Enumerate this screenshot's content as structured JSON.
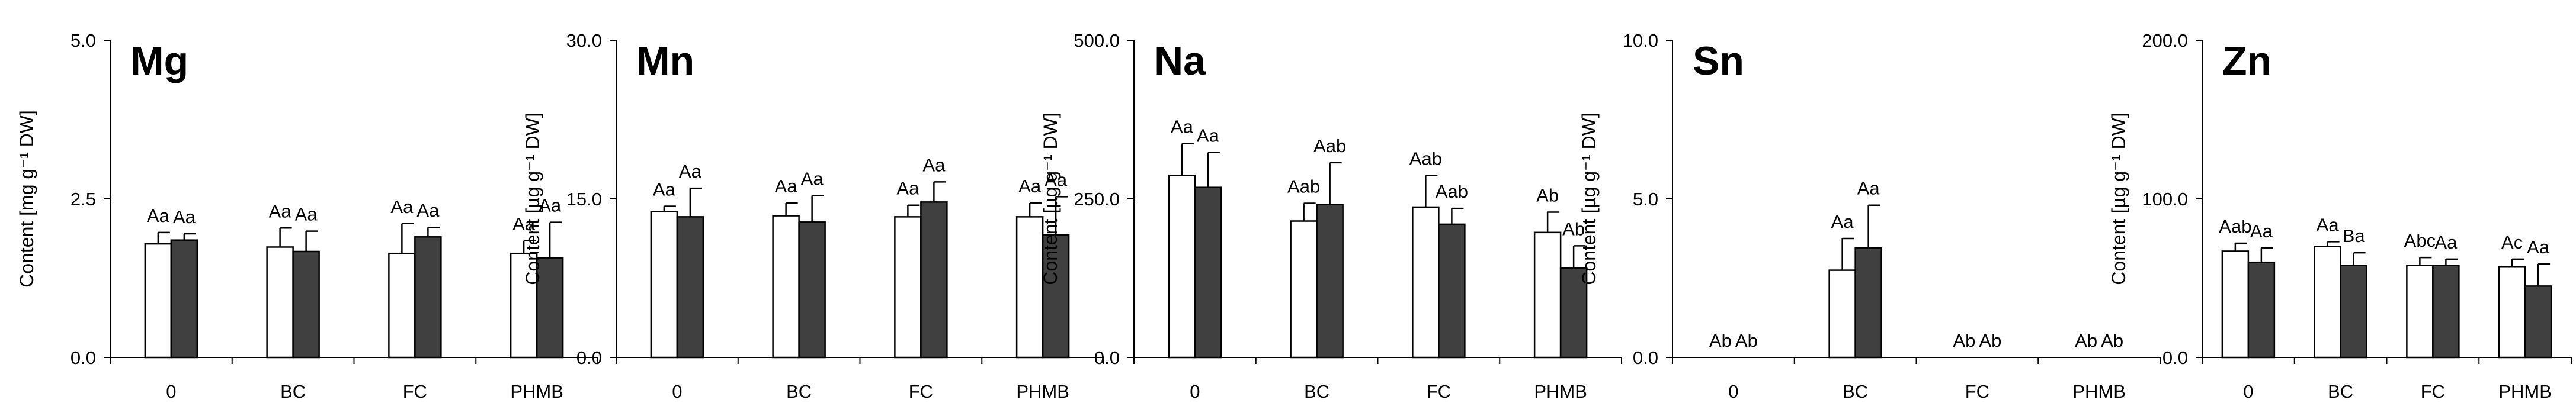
{
  "colors": {
    "control_fill": "#ffffff",
    "treated_fill": "#404040",
    "stroke": "#000000"
  },
  "chart_data": [
    {
      "type": "bar",
      "title": "Mg",
      "ylabel": "Content [mg g⁻¹ DW]",
      "ylim": [
        0,
        5
      ],
      "yticks": [
        "0.0",
        "2.5",
        "5.0"
      ],
      "categories": [
        "0",
        "BC",
        "FC",
        "PHMB"
      ],
      "series": [
        {
          "name": "white bars",
          "values": [
            1.79,
            1.74,
            1.64,
            1.64
          ],
          "errors": [
            0.18,
            0.3,
            0.47,
            0.2
          ],
          "labels": [
            "Aa",
            "Aa",
            "Aa",
            "Aa"
          ]
        },
        {
          "name": "dark bars",
          "values": [
            1.85,
            1.67,
            1.9,
            1.57
          ],
          "errors": [
            0.1,
            0.32,
            0.15,
            0.56
          ],
          "labels": [
            "Aa",
            "Aa",
            "Aa",
            "Aa"
          ]
        }
      ]
    },
    {
      "type": "bar",
      "title": "Mn",
      "ylabel": "Content [µg g⁻¹ DW]",
      "ylim": [
        0,
        30
      ],
      "yticks": [
        "0.0",
        "15.0",
        "30.0"
      ],
      "categories": [
        "0",
        "BC",
        "FC",
        "PHMB"
      ],
      "series": [
        {
          "name": "white bars",
          "values": [
            13.8,
            13.4,
            13.3,
            13.3
          ],
          "errors": [
            0.5,
            1.2,
            1.1,
            1.3
          ],
          "labels": [
            "Aa",
            "Aa",
            "Aa",
            "Aa"
          ]
        },
        {
          "name": "dark bars",
          "values": [
            13.3,
            12.8,
            14.7,
            11.6
          ],
          "errors": [
            2.7,
            2.5,
            1.9,
            3.6
          ],
          "labels": [
            "Aa",
            "Aa",
            "Aa",
            "Aa"
          ]
        }
      ]
    },
    {
      "type": "bar",
      "title": "Na",
      "ylabel": "Content [µg g⁻¹ DW]",
      "ylim": [
        0,
        500
      ],
      "yticks": [
        "0.0",
        "250.0",
        "500.0"
      ],
      "categories": [
        "0",
        "BC",
        "FC",
        "PHMB"
      ],
      "series": [
        {
          "name": "white bars",
          "values": [
            287,
            215,
            237,
            197
          ],
          "errors": [
            50,
            28,
            50,
            32
          ],
          "labels": [
            "Aa",
            "Aab",
            "Aab",
            "Ab"
          ]
        },
        {
          "name": "dark bars",
          "values": [
            268,
            241,
            210,
            141
          ],
          "errors": [
            55,
            66,
            25,
            35
          ],
          "labels": [
            "Aa",
            "Aab",
            "Aab",
            "Ab"
          ]
        }
      ]
    },
    {
      "type": "bar",
      "title": "Sn",
      "ylabel": "Content [µg g⁻¹ DW]",
      "ylim": [
        0,
        10
      ],
      "yticks": [
        "0.0",
        "5.0",
        "10.0"
      ],
      "categories": [
        "0",
        "BC",
        "FC",
        "PHMB"
      ],
      "series": [
        {
          "name": "white bars",
          "values": [
            0,
            2.75,
            0,
            0
          ],
          "errors": [
            0,
            1.0,
            0,
            0
          ],
          "labels": [
            "Ab",
            "Aa",
            "Ab",
            "Ab"
          ]
        },
        {
          "name": "dark bars",
          "values": [
            0,
            3.45,
            0,
            0
          ],
          "errors": [
            0,
            1.35,
            0,
            0
          ],
          "labels": [
            "Ab",
            "Aa",
            "Ab",
            "Ab"
          ]
        }
      ]
    },
    {
      "type": "bar",
      "title": "Zn",
      "ylabel": "Content [µg g⁻¹ DW]",
      "ylim": [
        0,
        200
      ],
      "yticks": [
        "0.0",
        "100.0",
        "200.0"
      ],
      "categories": [
        "0",
        "BC",
        "FC",
        "PHMB"
      ],
      "series": [
        {
          "name": "white bars",
          "values": [
            67,
            70,
            58,
            57
          ],
          "errors": [
            5,
            3,
            5,
            5
          ],
          "labels": [
            "Aab",
            "Aa",
            "Abc",
            "Ac"
          ]
        },
        {
          "name": "dark bars",
          "values": [
            60,
            58,
            58,
            45
          ],
          "errors": [
            9,
            8,
            4,
            14
          ],
          "labels": [
            "Aa",
            "Ba",
            "Aa",
            "Aa"
          ]
        }
      ]
    }
  ]
}
